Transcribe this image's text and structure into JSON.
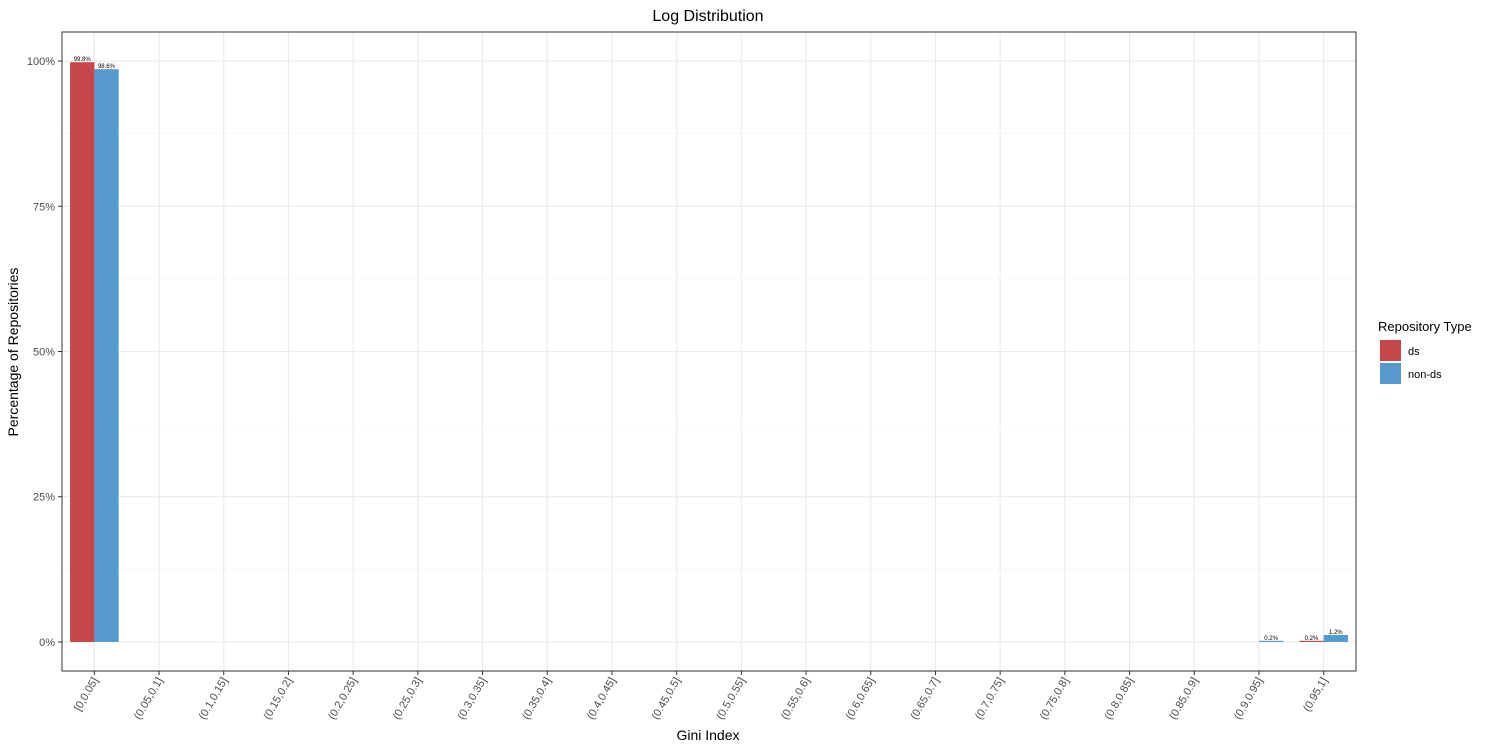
{
  "chart_data": {
    "type": "bar",
    "title": "Log Distribution",
    "xlabel": "Gini Index",
    "ylabel": "Percentage of Repositories",
    "categories": [
      "[0,0.05]",
      "(0.05,0.1]",
      "(0.1,0.15]",
      "(0.15,0.2]",
      "(0.2,0.25]",
      "(0.25,0.3]",
      "(0.3,0.35]",
      "(0.35,0.4]",
      "(0.4,0.45]",
      "(0.45,0.5]",
      "(0.5,0.55]",
      "(0.55,0.6]",
      "(0.6,0.65]",
      "(0.65,0.7]",
      "(0.7,0.75]",
      "(0.75,0.8]",
      "(0.8,0.85]",
      "(0.85,0.9]",
      "(0.9,0.95]",
      "(0.95,1]"
    ],
    "series": [
      {
        "name": "ds",
        "color": "#c6474b",
        "values": [
          99.8,
          null,
          null,
          null,
          null,
          null,
          null,
          null,
          null,
          null,
          null,
          null,
          null,
          null,
          null,
          null,
          null,
          null,
          null,
          0.2
        ],
        "labels": [
          "99.8%",
          null,
          null,
          null,
          null,
          null,
          null,
          null,
          null,
          null,
          null,
          null,
          null,
          null,
          null,
          null,
          null,
          null,
          null,
          "0.2%"
        ]
      },
      {
        "name": "non-ds",
        "color": "#5599cd",
        "values": [
          98.6,
          null,
          null,
          null,
          null,
          null,
          null,
          null,
          null,
          null,
          null,
          null,
          null,
          null,
          null,
          null,
          null,
          null,
          0.2,
          1.2
        ],
        "labels": [
          "98.6%",
          null,
          null,
          null,
          null,
          null,
          null,
          null,
          null,
          null,
          null,
          null,
          null,
          null,
          null,
          null,
          null,
          null,
          "0.2%",
          "1.2%"
        ]
      }
    ],
    "ylim": [
      -5,
      105
    ],
    "yticks": [
      0,
      25,
      50,
      75,
      100
    ],
    "ytick_labels": [
      "0%",
      "25%",
      "50%",
      "75%",
      "100%"
    ],
    "grid": true,
    "legend": {
      "title": "Repository Type",
      "position": "right"
    }
  }
}
